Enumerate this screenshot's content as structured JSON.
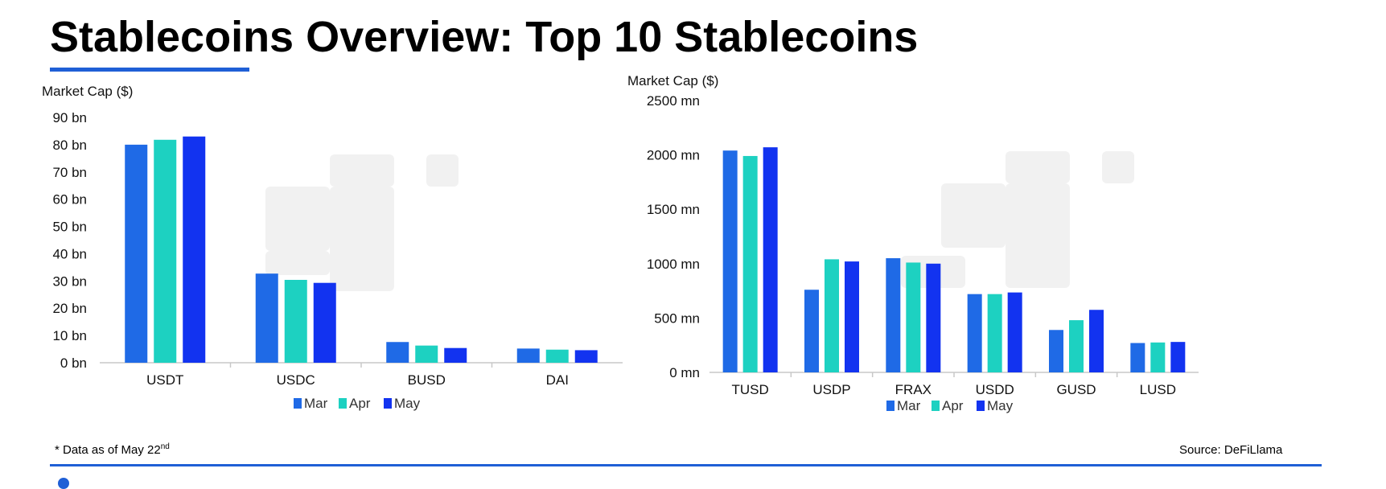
{
  "page": {
    "title": "Stablecoins Overview: Top 10 Stablecoins",
    "footnote": {
      "text": "* Data as of May 22",
      "superscript": "nd"
    },
    "source": "Source: DeFiLlama"
  },
  "colors": {
    "accent": "#1f5fd6",
    "watermark": "#f1f1f1"
  },
  "chart_data": [
    {
      "type": "bar",
      "ylabel": "Market Cap ($)",
      "xlabel": "",
      "categories": [
        "USDT",
        "USDC",
        "BUSD",
        "DAI"
      ],
      "ylim": [
        0,
        90
      ],
      "yticks": [
        0,
        10,
        20,
        30,
        40,
        50,
        60,
        70,
        80,
        90
      ],
      "ytick_labels": [
        "0 bn",
        "10 bn",
        "20 bn",
        "30 bn",
        "40 bn",
        "50 bn",
        "60 bn",
        "70 bn",
        "80 bn",
        "90 bn"
      ],
      "grid": false,
      "legend_position": "bottom",
      "series": [
        {
          "name": "Mar",
          "color": "#1f6ae6",
          "values": [
            80.0,
            32.7,
            7.6,
            5.2
          ]
        },
        {
          "name": "Apr",
          "color": "#1dd1c1",
          "values": [
            81.8,
            30.4,
            6.3,
            4.8
          ]
        },
        {
          "name": "May",
          "color": "#1233f0",
          "values": [
            83.0,
            29.3,
            5.4,
            4.6
          ]
        }
      ]
    },
    {
      "type": "bar",
      "ylabel": "Market Cap ($)",
      "xlabel": "",
      "categories": [
        "TUSD",
        "USDP",
        "FRAX",
        "USDD",
        "GUSD",
        "LUSD"
      ],
      "ylim": [
        0,
        2500
      ],
      "yticks": [
        0,
        500,
        1000,
        1500,
        2000,
        2500
      ],
      "ytick_labels": [
        "0 mn",
        "500 mn",
        "1000 mn",
        "1500 mn",
        "2000 mn",
        "2500 mn"
      ],
      "grid": false,
      "legend_position": "bottom",
      "series": [
        {
          "name": "Mar",
          "color": "#1f6ae6",
          "values": [
            2040,
            760,
            1050,
            720,
            390,
            270
          ]
        },
        {
          "name": "Apr",
          "color": "#1dd1c1",
          "values": [
            1990,
            1040,
            1010,
            720,
            480,
            275
          ]
        },
        {
          "name": "May",
          "color": "#1233f0",
          "values": [
            2070,
            1020,
            1000,
            735,
            575,
            280
          ]
        }
      ]
    }
  ]
}
